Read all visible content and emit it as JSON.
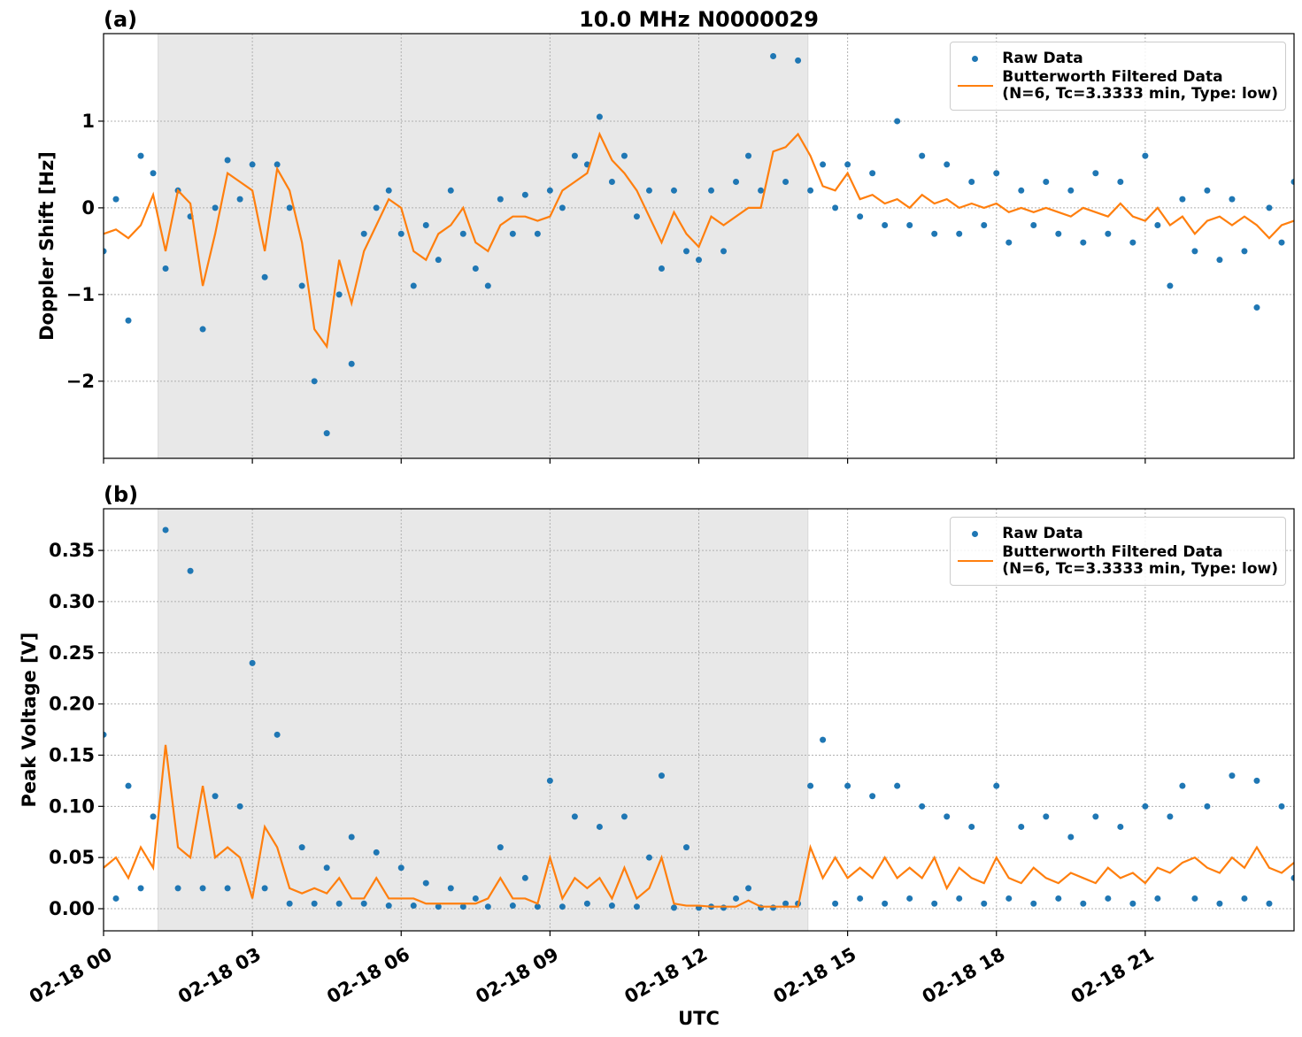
{
  "chart_data": [
    {
      "type": "line",
      "title": "10.0 MHz N0000029",
      "panel_label": "(a)",
      "ylabel": "Doppler Shift [Hz]",
      "x": [
        0,
        0.25,
        0.5,
        0.75,
        1,
        1.25,
        1.5,
        1.75,
        2,
        2.25,
        2.5,
        2.75,
        3,
        3.25,
        3.5,
        3.75,
        4,
        4.25,
        4.5,
        4.75,
        5,
        5.25,
        5.5,
        5.75,
        6,
        6.25,
        6.5,
        6.75,
        7,
        7.25,
        7.5,
        7.75,
        8,
        8.25,
        8.5,
        8.75,
        9,
        9.25,
        9.5,
        9.75,
        10,
        10.25,
        10.5,
        10.75,
        11,
        11.25,
        11.5,
        11.75,
        12,
        12.25,
        12.5,
        12.75,
        13,
        13.25,
        13.5,
        13.75,
        14,
        14.25,
        14.5,
        14.75,
        15,
        15.25,
        15.5,
        15.75,
        16,
        16.25,
        16.5,
        16.75,
        17,
        17.25,
        17.5,
        17.75,
        18,
        18.25,
        18.5,
        18.75,
        19,
        19.25,
        19.5,
        19.75,
        20,
        20.25,
        20.5,
        20.75,
        21,
        21.25,
        21.5,
        21.75,
        22,
        22.25,
        22.5,
        22.75,
        23,
        23.25,
        23.5,
        23.75,
        24
      ],
      "series": [
        {
          "name": "Raw Data",
          "style": "markers",
          "color": "#1f77b4",
          "values": [
            -0.5,
            0.1,
            -1.3,
            0.6,
            0.4,
            -0.7,
            0.2,
            -0.1,
            -1.4,
            0.0,
            0.55,
            0.1,
            0.5,
            -0.8,
            0.5,
            0.0,
            -0.9,
            -2.0,
            -2.6,
            -1.0,
            -1.8,
            -0.3,
            0.0,
            0.2,
            -0.3,
            -0.9,
            -0.2,
            -0.6,
            0.2,
            -0.3,
            -0.7,
            -0.9,
            0.1,
            -0.3,
            0.15,
            -0.3,
            0.2,
            0.0,
            0.6,
            0.5,
            1.05,
            0.3,
            0.6,
            -0.1,
            0.2,
            -0.7,
            0.2,
            -0.5,
            -0.6,
            0.2,
            -0.5,
            0.3,
            0.6,
            0.2,
            1.75,
            0.3,
            1.7,
            0.2,
            0.5,
            0.0,
            0.5,
            -0.1,
            0.4,
            -0.2,
            1.0,
            -0.2,
            0.6,
            -0.3,
            0.5,
            -0.3,
            0.3,
            -0.2,
            0.4,
            -0.4,
            0.2,
            -0.2,
            0.3,
            -0.3,
            0.2,
            -0.4,
            0.4,
            -0.3,
            0.3,
            -0.4,
            0.6,
            -0.2,
            -0.9,
            0.1,
            -0.5,
            0.2,
            -0.6,
            0.1,
            -0.5,
            -1.15,
            0.0,
            -0.4,
            0.3
          ]
        },
        {
          "name": "Butterworth Filtered Data\n(N=6, Tc=3.3333 min, Type: low)",
          "style": "line",
          "color": "#ff7f0e",
          "values": [
            -0.3,
            -0.25,
            -0.35,
            -0.2,
            0.15,
            -0.5,
            0.2,
            0.05,
            -0.9,
            -0.3,
            0.4,
            0.3,
            0.2,
            -0.5,
            0.45,
            0.2,
            -0.4,
            -1.4,
            -1.6,
            -0.6,
            -1.1,
            -0.5,
            -0.2,
            0.1,
            0.0,
            -0.5,
            -0.6,
            -0.3,
            -0.2,
            0.0,
            -0.4,
            -0.5,
            -0.2,
            -0.1,
            -0.1,
            -0.15,
            -0.1,
            0.2,
            0.3,
            0.4,
            0.85,
            0.55,
            0.4,
            0.2,
            -0.1,
            -0.4,
            -0.05,
            -0.3,
            -0.45,
            -0.1,
            -0.2,
            -0.1,
            0.0,
            0.0,
            0.65,
            0.7,
            0.85,
            0.6,
            0.25,
            0.2,
            0.4,
            0.1,
            0.15,
            0.05,
            0.1,
            0.0,
            0.15,
            0.05,
            0.1,
            0.0,
            0.05,
            0.0,
            0.05,
            -0.05,
            0.0,
            -0.05,
            0.0,
            -0.05,
            -0.1,
            0.0,
            -0.05,
            -0.1,
            0.05,
            -0.1,
            -0.15,
            0.0,
            -0.2,
            -0.1,
            -0.3,
            -0.15,
            -0.1,
            -0.2,
            -0.1,
            -0.2,
            -0.35,
            -0.2,
            -0.15
          ]
        }
      ],
      "xlim": [
        0,
        24
      ],
      "ylim": [
        -2.89,
        2.01
      ],
      "xticks": [
        0,
        3,
        6,
        9,
        12,
        15,
        18,
        21
      ],
      "yticks": [
        {
          "value": -2,
          "label": "−2"
        },
        {
          "value": -1,
          "label": "−1"
        },
        0,
        1
      ],
      "shaded_span": [
        1.1,
        14.2
      ],
      "grid": true,
      "legend": "upper right"
    },
    {
      "type": "line",
      "panel_label": "(b)",
      "ylabel": "Peak Voltage [V]",
      "xlabel": "UTC",
      "x": [
        0,
        0.25,
        0.5,
        0.75,
        1,
        1.25,
        1.5,
        1.75,
        2,
        2.25,
        2.5,
        2.75,
        3,
        3.25,
        3.5,
        3.75,
        4,
        4.25,
        4.5,
        4.75,
        5,
        5.25,
        5.5,
        5.75,
        6,
        6.25,
        6.5,
        6.75,
        7,
        7.25,
        7.5,
        7.75,
        8,
        8.25,
        8.5,
        8.75,
        9,
        9.25,
        9.5,
        9.75,
        10,
        10.25,
        10.5,
        10.75,
        11,
        11.25,
        11.5,
        11.75,
        12,
        12.25,
        12.5,
        12.75,
        13,
        13.25,
        13.5,
        13.75,
        14,
        14.25,
        14.5,
        14.75,
        15,
        15.25,
        15.5,
        15.75,
        16,
        16.25,
        16.5,
        16.75,
        17,
        17.25,
        17.5,
        17.75,
        18,
        18.25,
        18.5,
        18.75,
        19,
        19.25,
        19.5,
        19.75,
        20,
        20.25,
        20.5,
        20.75,
        21,
        21.25,
        21.5,
        21.75,
        22,
        22.25,
        22.5,
        22.75,
        23,
        23.25,
        23.5,
        23.75,
        24
      ],
      "series": [
        {
          "name": "Raw Data",
          "style": "markers",
          "color": "#1f77b4",
          "values": [
            0.17,
            0.01,
            0.12,
            0.02,
            0.09,
            0.37,
            0.02,
            0.33,
            0.02,
            0.11,
            0.02,
            0.1,
            0.24,
            0.02,
            0.17,
            0.005,
            0.06,
            0.005,
            0.04,
            0.005,
            0.07,
            0.005,
            0.055,
            0.003,
            0.04,
            0.003,
            0.025,
            0.002,
            0.02,
            0.002,
            0.01,
            0.002,
            0.06,
            0.003,
            0.03,
            0.002,
            0.125,
            0.002,
            0.09,
            0.005,
            0.08,
            0.003,
            0.09,
            0.002,
            0.05,
            0.13,
            0.001,
            0.06,
            0.001,
            0.002,
            0.001,
            0.01,
            0.02,
            0.001,
            0.001,
            0.005,
            0.005,
            0.12,
            0.165,
            0.005,
            0.12,
            0.01,
            0.11,
            0.005,
            0.12,
            0.01,
            0.1,
            0.005,
            0.09,
            0.01,
            0.08,
            0.005,
            0.12,
            0.01,
            0.08,
            0.005,
            0.09,
            0.01,
            0.07,
            0.005,
            0.09,
            0.01,
            0.08,
            0.005,
            0.1,
            0.01,
            0.09,
            0.12,
            0.01,
            0.1,
            0.005,
            0.13,
            0.01,
            0.125,
            0.005,
            0.1,
            0.03
          ]
        },
        {
          "name": "Butterworth Filtered Data\n(N=6, Tc=3.3333 min, Type: low)",
          "style": "line",
          "color": "#ff7f0e",
          "values": [
            0.04,
            0.05,
            0.03,
            0.06,
            0.04,
            0.16,
            0.06,
            0.05,
            0.12,
            0.05,
            0.06,
            0.05,
            0.01,
            0.08,
            0.06,
            0.02,
            0.015,
            0.02,
            0.015,
            0.03,
            0.01,
            0.01,
            0.03,
            0.01,
            0.01,
            0.01,
            0.005,
            0.005,
            0.005,
            0.005,
            0.005,
            0.01,
            0.03,
            0.01,
            0.01,
            0.005,
            0.05,
            0.01,
            0.03,
            0.02,
            0.03,
            0.01,
            0.04,
            0.01,
            0.02,
            0.05,
            0.005,
            0.003,
            0.003,
            0.002,
            0.002,
            0.002,
            0.008,
            0.002,
            0.002,
            0.002,
            0.002,
            0.06,
            0.03,
            0.05,
            0.03,
            0.04,
            0.03,
            0.05,
            0.03,
            0.04,
            0.03,
            0.05,
            0.02,
            0.04,
            0.03,
            0.025,
            0.05,
            0.03,
            0.025,
            0.04,
            0.03,
            0.025,
            0.035,
            0.03,
            0.025,
            0.04,
            0.03,
            0.035,
            0.025,
            0.04,
            0.035,
            0.045,
            0.05,
            0.04,
            0.035,
            0.05,
            0.04,
            0.06,
            0.04,
            0.035,
            0.045
          ]
        }
      ],
      "xlim": [
        0,
        24
      ],
      "ylim": [
        -0.0216,
        0.3907
      ],
      "xticks": [
        {
          "value": 0,
          "label": "02-18 00"
        },
        {
          "value": 3,
          "label": "02-18 03"
        },
        {
          "value": 6,
          "label": "02-18 06"
        },
        {
          "value": 9,
          "label": "02-18 09"
        },
        {
          "value": 12,
          "label": "02-18 12"
        },
        {
          "value": 15,
          "label": "02-18 15"
        },
        {
          "value": 18,
          "label": "02-18 18"
        },
        {
          "value": 21,
          "label": "02-18 21"
        }
      ],
      "yticks": [
        {
          "value": 0,
          "label": "0.00"
        },
        {
          "value": 0.05,
          "label": "0.05"
        },
        {
          "value": 0.1,
          "label": "0.10"
        },
        {
          "value": 0.15,
          "label": "0.15"
        },
        {
          "value": 0.2,
          "label": "0.20"
        },
        {
          "value": 0.25,
          "label": "0.25"
        },
        {
          "value": 0.3,
          "label": "0.30"
        },
        {
          "value": 0.35,
          "label": "0.35"
        }
      ],
      "shaded_span": [
        1.1,
        14.2
      ],
      "grid": true,
      "legend": "upper right"
    }
  ]
}
